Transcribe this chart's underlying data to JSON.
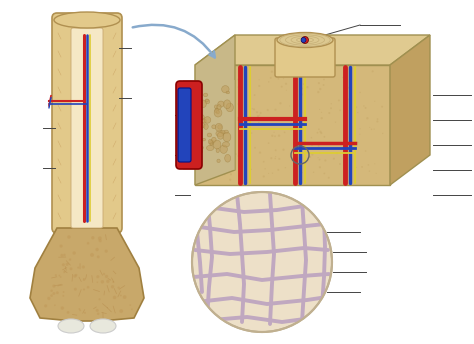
{
  "bg": "#ffffff",
  "bone_outer": "#e2c98a",
  "bone_inner": "#f0deb0",
  "bone_epiphysis": "#c8a86a",
  "bone_marrow": "#f5e8c5",
  "bone_spongy": "#d4b87a",
  "vessel_red": "#cc2020",
  "vessel_blue": "#2244bb",
  "vessel_yellow": "#ddcc33",
  "compact_bone": "#d4b87a",
  "compact_bone_top": "#e0ca90",
  "compact_bone_right": "#c0a060",
  "strut_color": "#c0a8c0",
  "trab_fill": "#ede0c8",
  "arrow_color": "#88aacc",
  "label_color": "#444444",
  "white_cart": "#e8e8dd",
  "periosteum": "#b89858"
}
